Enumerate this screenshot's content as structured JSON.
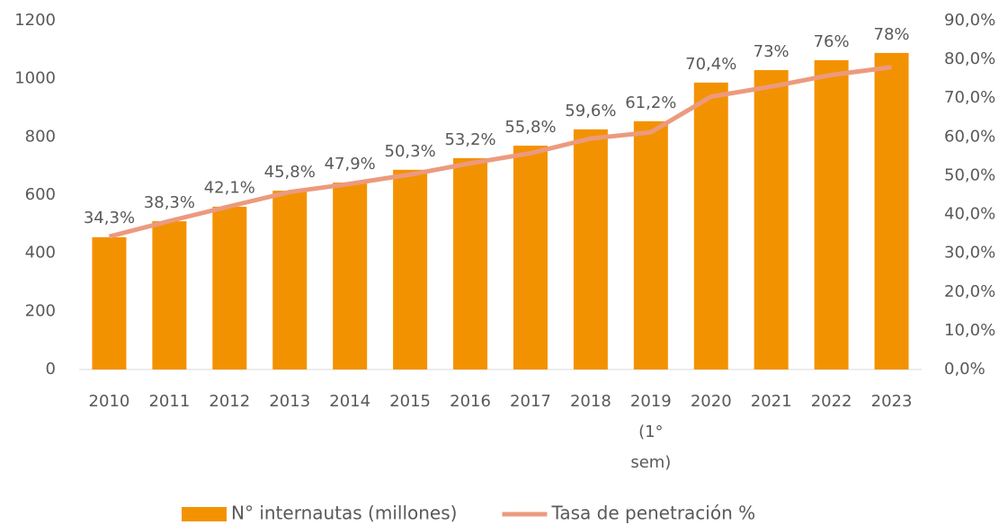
{
  "chart_data": {
    "type": "bar_line",
    "categories": [
      "2010",
      "2011",
      "2012",
      "2013",
      "2014",
      "2015",
      "2016",
      "2017",
      "2018",
      "2019 (1° sem)",
      "2020",
      "2021",
      "2022",
      "2023"
    ],
    "series": [
      {
        "name": "N° internautas (millones)",
        "type": "bar",
        "color": "#f39200",
        "values": [
          455,
          510,
          560,
          615,
          643,
          687,
          727,
          770,
          826,
          854,
          987,
          1030,
          1064,
          1089
        ]
      },
      {
        "name": "Tasa de penetración %",
        "type": "line",
        "axis": "y2",
        "color": "#ec9a7e",
        "values": [
          34.3,
          38.3,
          42.1,
          45.8,
          47.9,
          50.3,
          53.2,
          55.8,
          59.6,
          61.2,
          70.4,
          73,
          76,
          78
        ],
        "value_labels": [
          "34,3%",
          "38,3%",
          "42,1%",
          "45,8%",
          "47,9%",
          "50,3%",
          "53,2%",
          "55,8%",
          "59,6%",
          "61,2%",
          "70,4%",
          "73%",
          "76%",
          "78%"
        ]
      }
    ],
    "ylim": [
      0,
      1200
    ],
    "yticks": [
      0,
      200,
      400,
      600,
      800,
      1000,
      1200
    ],
    "y2lim": [
      0,
      90
    ],
    "y2ticks": [
      {
        "value": 0,
        "label": "0,0%"
      },
      {
        "value": 10,
        "label": "10,0%"
      },
      {
        "value": 20,
        "label": "20,0%"
      },
      {
        "value": 30,
        "label": "30,0%"
      },
      {
        "value": 40,
        "label": "40,0%"
      },
      {
        "value": 50,
        "label": "50,0%"
      },
      {
        "value": 60,
        "label": "60,0%"
      },
      {
        "value": 70,
        "label": "70,0%"
      },
      {
        "value": 80,
        "label": "80,0%"
      },
      {
        "value": 90,
        "label": "90,0%"
      }
    ],
    "legend": "bottom"
  }
}
